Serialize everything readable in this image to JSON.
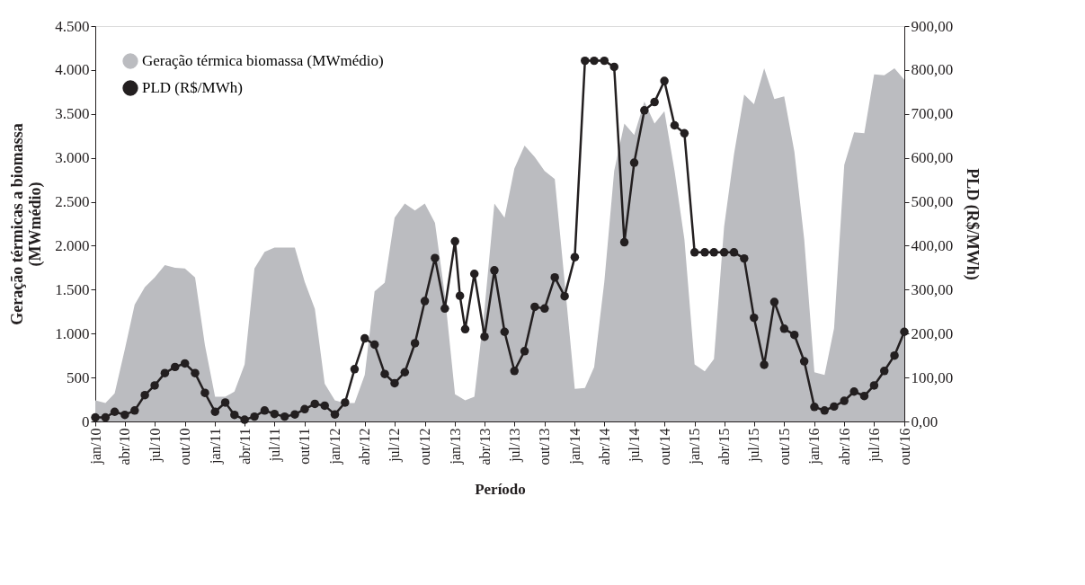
{
  "chart_data": {
    "type": "line",
    "xlabel": "Período",
    "ylabel": "Geração térmicas a biomassa\n(MWmédio)",
    "y2label": "PLD (R$/MWh)",
    "xlim": [
      "2010-01",
      "2016-10"
    ],
    "xticks": [
      {
        "value": "2010-01",
        "label": "jan/10"
      },
      {
        "value": "2010-04",
        "label": "abr/10"
      },
      {
        "value": "2010-07",
        "label": "jul/10"
      },
      {
        "value": "2010-10",
        "label": "out/10"
      },
      {
        "value": "2011-01",
        "label": "jan/11"
      },
      {
        "value": "2011-04",
        "label": "abr/11"
      },
      {
        "value": "2011-07",
        "label": "jul/11"
      },
      {
        "value": "2011-10",
        "label": "out/11"
      },
      {
        "value": "2012-01",
        "label": "jan/12"
      },
      {
        "value": "2012-04",
        "label": "abr/12"
      },
      {
        "value": "2012-07",
        "label": "jul/12"
      },
      {
        "value": "2012-10",
        "label": "out/12"
      },
      {
        "value": "2013-01",
        "label": "jan/13"
      },
      {
        "value": "2013-04",
        "label": "abr/13"
      },
      {
        "value": "2013-07",
        "label": "jul/13"
      },
      {
        "value": "2013-10",
        "label": "out/13"
      },
      {
        "value": "2014-01",
        "label": "jan/14"
      },
      {
        "value": "2014-04",
        "label": "abr/14"
      },
      {
        "value": "2014-07",
        "label": "jul/14"
      },
      {
        "value": "2014-10",
        "label": "out/14"
      },
      {
        "value": "2015-01",
        "label": "jan/15"
      },
      {
        "value": "2015-04",
        "label": "abr/15"
      },
      {
        "value": "2015-07",
        "label": "jul/15"
      },
      {
        "value": "2015-10",
        "label": "out/15"
      },
      {
        "value": "2016-01",
        "label": "jan/16"
      },
      {
        "value": "2016-04",
        "label": "abr/16"
      },
      {
        "value": "2016-07",
        "label": "jul/16"
      },
      {
        "value": "2016-10",
        "label": "out/16"
      }
    ],
    "ylim": [
      0,
      4500
    ],
    "yticks": [
      0,
      500,
      {
        "value": 1000,
        "label": "1.000"
      },
      {
        "value": 1500,
        "label": "1.500"
      },
      {
        "value": 2000,
        "label": "2.000"
      },
      {
        "value": 2500,
        "label": "2.500"
      },
      {
        "value": 3000,
        "label": "3.000"
      },
      {
        "value": 3500,
        "label": "3.500"
      },
      {
        "value": 4000,
        "label": "4.000"
      },
      {
        "value": 4500,
        "label": "4.500"
      }
    ],
    "y2lim": [
      0,
      900
    ],
    "y2ticks": [
      {
        "value": 0,
        "label": "0,00"
      },
      {
        "value": 100,
        "label": "100,00"
      },
      {
        "value": 200,
        "label": "200,00"
      },
      {
        "value": 300,
        "label": "300,00"
      },
      {
        "value": 400,
        "label": "400,00"
      },
      {
        "value": 500,
        "label": "500,00"
      },
      {
        "value": 600,
        "label": "600,00"
      },
      {
        "value": 700,
        "label": "700,00"
      },
      {
        "value": 800,
        "label": "800,00"
      },
      {
        "value": 900,
        "label": "900,00"
      }
    ],
    "legend": "top left",
    "series": [
      {
        "name": "Geração térmica biomassa (MWmédio)",
        "type": "area",
        "color": "#bbbcc0",
        "x": [
          "2010-01",
          "2010-02",
          "2010-03",
          "2010-04",
          "2010-05",
          "2010-06",
          "2010-07",
          "2010-08",
          "2010-09",
          "2010-10",
          "2010-11",
          "2010-12",
          "2011-01",
          "2011-02",
          "2011-03",
          "2011-04",
          "2011-05",
          "2011-06",
          "2011-07",
          "2011-08",
          "2011-09",
          "2011-10",
          "2011-11",
          "2011-12",
          "2012-01",
          "2012-02",
          "2012-03",
          "2012-04",
          "2012-05",
          "2012-06",
          "2012-07",
          "2012-08",
          "2012-09",
          "2012-10",
          "2012-11",
          "2012-12",
          "2013-01",
          "2013-02",
          "2013-03",
          "2013-04",
          "2013-05",
          "2013-06",
          "2013-07",
          "2013-08",
          "2013-09",
          "2013-10",
          "2013-11",
          "2013-12",
          "2014-01",
          "2014-02",
          "2014-03",
          "2014-04",
          "2014-05",
          "2014-06",
          "2014-07",
          "2014-08",
          "2014-09",
          "2014-10",
          "2014-11",
          "2014-12",
          "2015-01",
          "2015-02",
          "2015-03",
          "2015-04",
          "2015-05",
          "2015-06",
          "2015-07",
          "2015-08",
          "2015-09",
          "2015-10",
          "2015-11",
          "2015-12",
          "2016-01",
          "2016-02",
          "2016-03",
          "2016-04",
          "2016-05",
          "2016-06",
          "2016-07",
          "2016-08",
          "2016-09",
          "2016-10"
        ],
        "values": [
          240,
          210,
          320,
          820,
          1330,
          1530,
          1640,
          1780,
          1750,
          1740,
          1640,
          870,
          280,
          280,
          340,
          650,
          1740,
          1930,
          1980,
          1980,
          1980,
          1590,
          1280,
          430,
          240,
          210,
          210,
          530,
          1480,
          1580,
          2320,
          2480,
          2400,
          2480,
          2260,
          1440,
          310,
          240,
          280,
          1280,
          2480,
          2320,
          2880,
          3140,
          3010,
          2850,
          2760,
          1590,
          370,
          380,
          620,
          1590,
          2850,
          3390,
          3260,
          3640,
          3390,
          3530,
          2850,
          2070,
          650,
          570,
          710,
          2220,
          3040,
          3720,
          3610,
          4020,
          3670,
          3700,
          3070,
          2070,
          560,
          530,
          1060,
          2920,
          3290,
          3280,
          3950,
          3940,
          4020,
          3890
        ]
      },
      {
        "name": "PLD (R$/MWh)",
        "axis": "y2",
        "color": "#231f20",
        "marker": "circle",
        "x": [
          "2010-01",
          "2010-02",
          "2010-03",
          "2010-04",
          "2010-05",
          "2010-06",
          "2010-07",
          "2010-08",
          "2010-09",
          "2010-10",
          "2010-11",
          "2010-12",
          "2011-01",
          "2011-02",
          "2011-03",
          "2011-04",
          "2011-05",
          "2011-06",
          "2011-07",
          "2011-08",
          "2011-09",
          "2011-10",
          "2011-11",
          "2011-12",
          "2012-01",
          "2012-02",
          "2012-03",
          "2012-04",
          "2012-05",
          "2012-06",
          "2012-07",
          "2012-08",
          "2012-09",
          "2012-10",
          "2012-11",
          "2012-12",
          "2013-01",
          "2013-01-16",
          "2013-02",
          "2013-03",
          "2013-04",
          "2013-05",
          "2013-06",
          "2013-07",
          "2013-08",
          "2013-09",
          "2013-10",
          "2013-11",
          "2013-12",
          "2014-01",
          "2014-02",
          "2014-03",
          "2014-04",
          "2014-05",
          "2014-06",
          "2014-07",
          "2014-08",
          "2014-09",
          "2014-10",
          "2014-11",
          "2014-12",
          "2015-01",
          "2015-02",
          "2015-03",
          "2015-04",
          "2015-05",
          "2015-06",
          "2015-07",
          "2015-08",
          "2015-09",
          "2015-10",
          "2015-11",
          "2015-12",
          "2016-01",
          "2016-02",
          "2016-03",
          "2016-04",
          "2016-05",
          "2016-06",
          "2016-07",
          "2016-08",
          "2016-09",
          "2016-10"
        ],
        "values": [
          9,
          9,
          22,
          15,
          25,
          60,
          82,
          110,
          124,
          132,
          110,
          65,
          22,
          43,
          15,
          4,
          11,
          25,
          17,
          11,
          16,
          28,
          40,
          36,
          16,
          43,
          119,
          189,
          175,
          108,
          87,
          112,
          178,
          274,
          372,
          257,
          410,
          286,
          210,
          336,
          193,
          344,
          204,
          115,
          160,
          261,
          257,
          328,
          285,
          374,
          821,
          821,
          821,
          807,
          408,
          589,
          708,
          727,
          775,
          674,
          656,
          385,
          385,
          385,
          385,
          385,
          371,
          236,
          129,
          272,
          211,
          197,
          137,
          33,
          25,
          34,
          47,
          68,
          58,
          82,
          115,
          150,
          204
        ]
      }
    ]
  }
}
